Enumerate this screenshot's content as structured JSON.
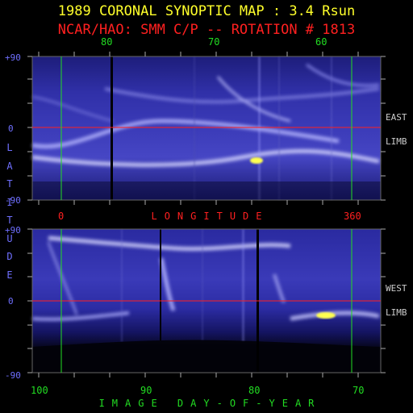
{
  "header": {
    "title": "1989 CORONAL SYNOPTIC MAP : 3.4 Rsun",
    "subtitle": "NCAR/HAO: SMM C/P -- ROTATION # 1813"
  },
  "top_axis": {
    "ticks": [
      "80",
      "70",
      "60"
    ]
  },
  "latitude_axis": {
    "label": "LATITUDE",
    "top_panel_ticks": [
      "+90",
      "0",
      "-90"
    ],
    "bottom_panel_ticks": [
      "+90",
      "0",
      "-90"
    ]
  },
  "longitude_axis": {
    "label": "LONGITUDE",
    "ticks": [
      "0",
      "360"
    ]
  },
  "bottom_axis": {
    "label": "IMAGE DAY-OF-YEAR",
    "ticks": [
      "100",
      "90",
      "80",
      "70"
    ]
  },
  "panels": {
    "east": {
      "label_line1": "EAST",
      "label_line2": "LIMB"
    },
    "west": {
      "label_line1": "WEST",
      "label_line2": "LIMB"
    }
  },
  "colors": {
    "title": "#ffff2a",
    "subtitle": "#ff2020",
    "equator_line": "#ff2020",
    "boundary_line": "#22dd22",
    "axis_label": "#6f6fff",
    "map_dark": "#05051a",
    "map_mid": "#2a2aa0",
    "map_bright": "#e8e8ff",
    "hotspot": "#ffff50"
  }
}
